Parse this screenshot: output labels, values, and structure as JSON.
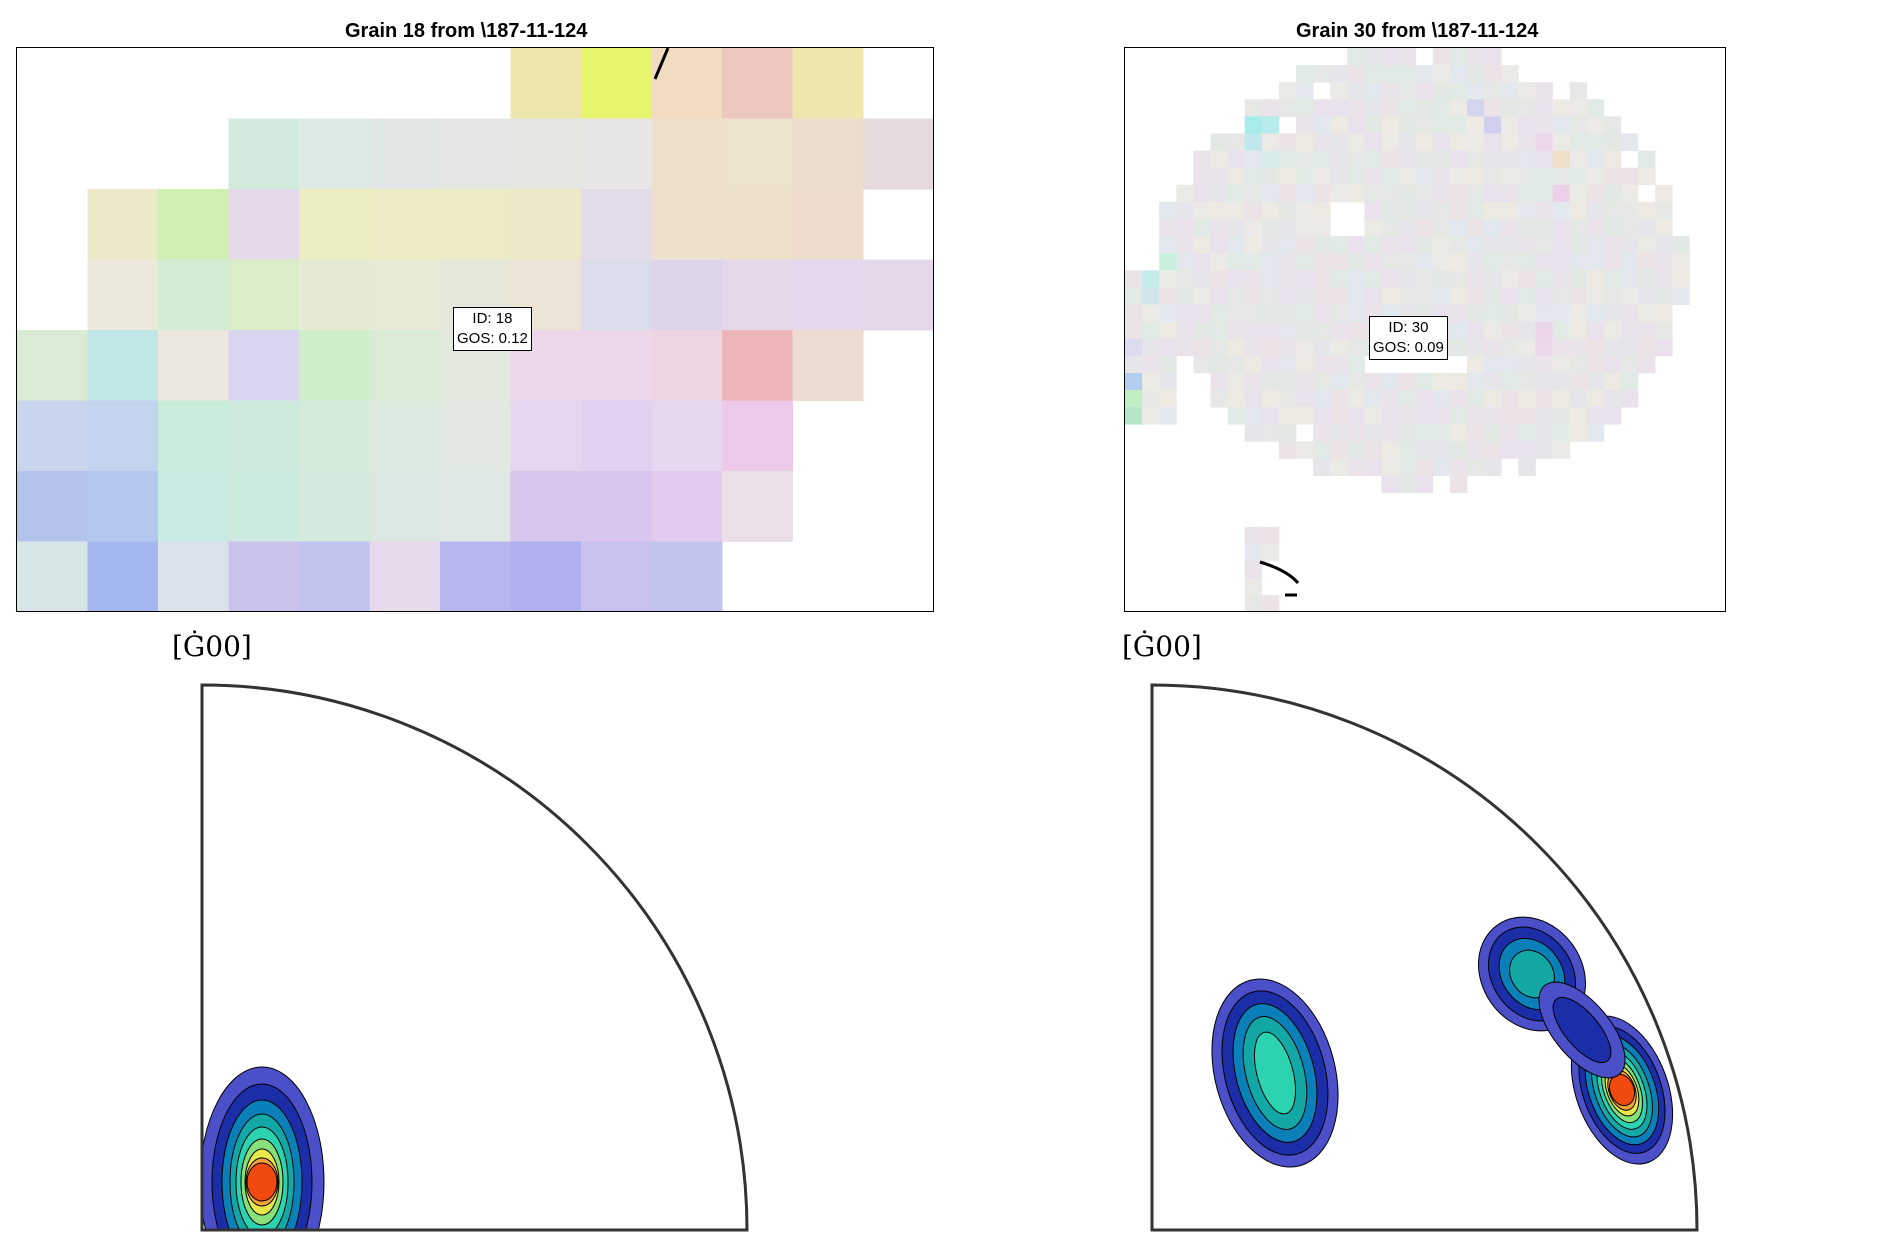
{
  "panels": [
    {
      "title": "Grain 18 from \\187-11-124",
      "id_label": "ID: 18",
      "gos_label": "GOS: 0.12",
      "pole_top_label": "[Ġ00]"
    },
    {
      "title": "Grain 30 from \\187-11-124",
      "id_label": "ID: 30",
      "gos_label": "GOS: 0.09",
      "pole_top_label": "[Ġ00]"
    }
  ],
  "colors": {
    "contour_levels": [
      "#4b4fc8",
      "#1c2da8",
      "#0a7fb8",
      "#13a7a6",
      "#2cd3b0",
      "#88e07a",
      "#e8e84a",
      "#f2a23a",
      "#f04a10"
    ]
  }
}
